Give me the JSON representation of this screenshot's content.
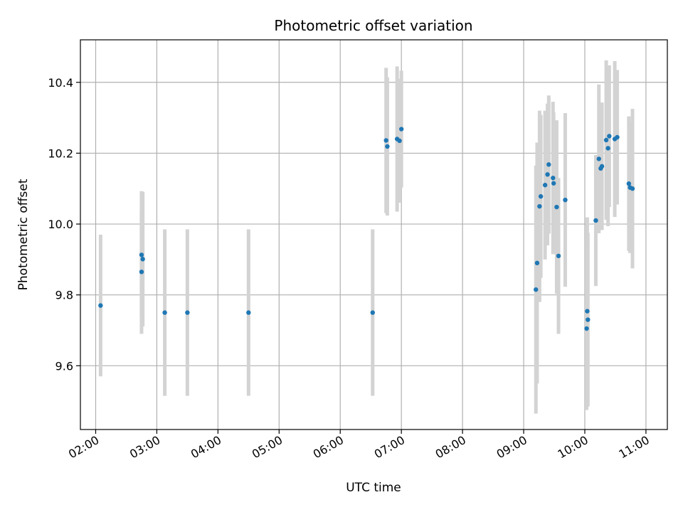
{
  "chart_data": {
    "type": "scatter",
    "title": "Photometric offset variation",
    "xlabel": "UTC time",
    "ylabel": "Photometric offset",
    "grid": true,
    "x_unit": "hours UTC",
    "xlim": [
      1.75,
      11.35
    ],
    "ylim": [
      9.42,
      10.52
    ],
    "x_ticks": [
      {
        "value": 2,
        "label": "02:00"
      },
      {
        "value": 3,
        "label": "03:00"
      },
      {
        "value": 4,
        "label": "04:00"
      },
      {
        "value": 5,
        "label": "05:00"
      },
      {
        "value": 6,
        "label": "06:00"
      },
      {
        "value": 7,
        "label": "07:00"
      },
      {
        "value": 8,
        "label": "08:00"
      },
      {
        "value": 9,
        "label": "09:00"
      },
      {
        "value": 10,
        "label": "10:00"
      },
      {
        "value": 11,
        "label": "11:00"
      }
    ],
    "y_ticks": [
      {
        "value": 9.6,
        "label": "9.6"
      },
      {
        "value": 9.8,
        "label": "9.8"
      },
      {
        "value": 10.0,
        "label": "10.0"
      },
      {
        "value": 10.2,
        "label": "10.2"
      },
      {
        "value": 10.4,
        "label": "10.4"
      }
    ],
    "colors": {
      "marker": "#1f77b4",
      "errorbar": "#d3d3d3",
      "grid": "#b0b0b0"
    },
    "points": [
      {
        "x": 2.08,
        "y": 9.77,
        "err": 0.2
      },
      {
        "x": 2.75,
        "y": 9.865,
        "err": 0.175
      },
      {
        "x": 2.75,
        "y": 9.913,
        "err": 0.18
      },
      {
        "x": 2.77,
        "y": 9.901,
        "err": 0.19
      },
      {
        "x": 3.13,
        "y": 9.75,
        "err": 0.235
      },
      {
        "x": 3.5,
        "y": 9.75,
        "err": 0.235
      },
      {
        "x": 4.5,
        "y": 9.75,
        "err": 0.235
      },
      {
        "x": 6.53,
        "y": 9.75,
        "err": 0.235
      },
      {
        "x": 6.75,
        "y": 10.236,
        "err": 0.205
      },
      {
        "x": 6.77,
        "y": 10.219,
        "err": 0.195
      },
      {
        "x": 6.93,
        "y": 10.24,
        "err": 0.205
      },
      {
        "x": 6.97,
        "y": 10.235,
        "err": 0.175
      },
      {
        "x": 7.0,
        "y": 10.268,
        "err": 0.165
      },
      {
        "x": 9.2,
        "y": 9.815,
        "err": 0.35
      },
      {
        "x": 9.22,
        "y": 9.89,
        "err": 0.34
      },
      {
        "x": 9.26,
        "y": 10.05,
        "err": 0.27
      },
      {
        "x": 9.28,
        "y": 10.078,
        "err": 0.23
      },
      {
        "x": 9.35,
        "y": 10.11,
        "err": 0.21
      },
      {
        "x": 9.39,
        "y": 10.14,
        "err": 0.2
      },
      {
        "x": 9.41,
        "y": 10.168,
        "err": 0.195
      },
      {
        "x": 9.48,
        "y": 10.13,
        "err": 0.215
      },
      {
        "x": 9.49,
        "y": 10.115,
        "err": 0.2
      },
      {
        "x": 9.54,
        "y": 10.048,
        "err": 0.245
      },
      {
        "x": 9.57,
        "y": 9.91,
        "err": 0.22
      },
      {
        "x": 9.68,
        "y": 10.068,
        "err": 0.245
      },
      {
        "x": 10.03,
        "y": 9.705,
        "err": 0.23
      },
      {
        "x": 10.04,
        "y": 9.754,
        "err": 0.265
      },
      {
        "x": 10.05,
        "y": 9.73,
        "err": 0.245
      },
      {
        "x": 10.18,
        "y": 10.01,
        "err": 0.185
      },
      {
        "x": 10.23,
        "y": 10.184,
        "err": 0.21
      },
      {
        "x": 10.26,
        "y": 10.157,
        "err": 0.17
      },
      {
        "x": 10.28,
        "y": 10.163,
        "err": 0.18
      },
      {
        "x": 10.35,
        "y": 10.237,
        "err": 0.225
      },
      {
        "x": 10.38,
        "y": 10.214,
        "err": 0.22
      },
      {
        "x": 10.4,
        "y": 10.248,
        "err": 0.2
      },
      {
        "x": 10.49,
        "y": 10.24,
        "err": 0.22
      },
      {
        "x": 10.53,
        "y": 10.245,
        "err": 0.19
      },
      {
        "x": 10.72,
        "y": 10.114,
        "err": 0.19
      },
      {
        "x": 10.74,
        "y": 10.103,
        "err": 0.185
      },
      {
        "x": 10.78,
        "y": 10.1,
        "err": 0.225
      }
    ]
  }
}
